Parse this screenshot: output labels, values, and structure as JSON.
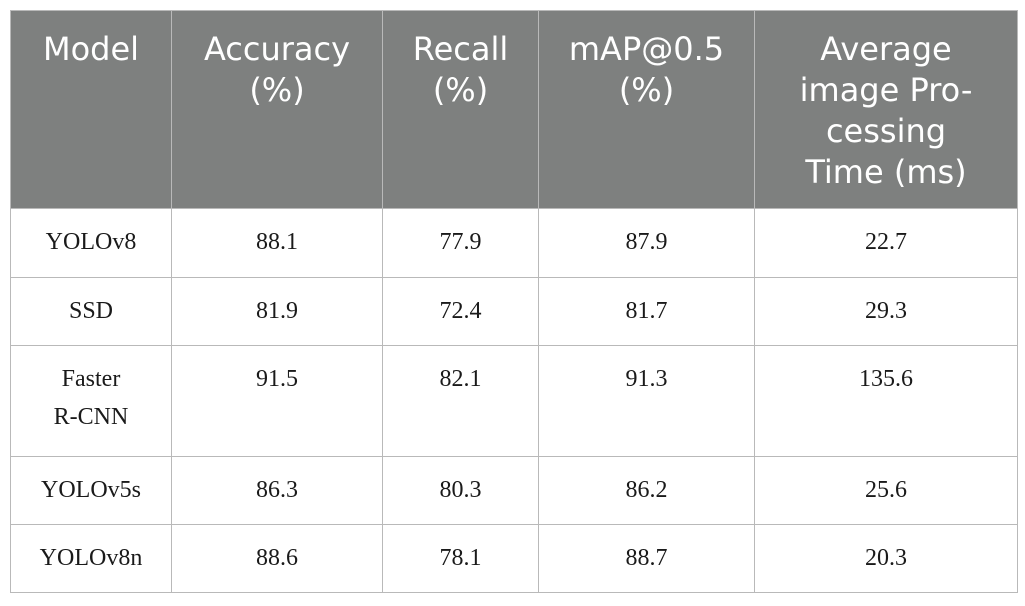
{
  "table": {
    "headers": [
      [
        "Model"
      ],
      [
        "Accuracy",
        "(%)"
      ],
      [
        "Recall",
        "(%)"
      ],
      [
        "mAP@0.5",
        "(%)"
      ],
      [
        "Average",
        "image Pro-",
        "cessing",
        "Time (ms)"
      ]
    ],
    "rows": [
      {
        "model": [
          "YOLOv8"
        ],
        "accuracy": "88.1",
        "recall": "77.9",
        "map": "87.9",
        "time": "22.7"
      },
      {
        "model": [
          "SSD"
        ],
        "accuracy": "81.9",
        "recall": "72.4",
        "map": "81.7",
        "time": "29.3"
      },
      {
        "model": [
          "Faster",
          "R-CNN"
        ],
        "accuracy": "91.5",
        "recall": "82.1",
        "map": "91.3",
        "time": "135.6"
      },
      {
        "model": [
          "YOLOv5s"
        ],
        "accuracy": "86.3",
        "recall": "80.3",
        "map": "86.2",
        "time": "25.6"
      },
      {
        "model": [
          "YOLOv8n"
        ],
        "accuracy": "88.6",
        "recall": "78.1",
        "map": "88.7",
        "time": "20.3"
      }
    ]
  }
}
